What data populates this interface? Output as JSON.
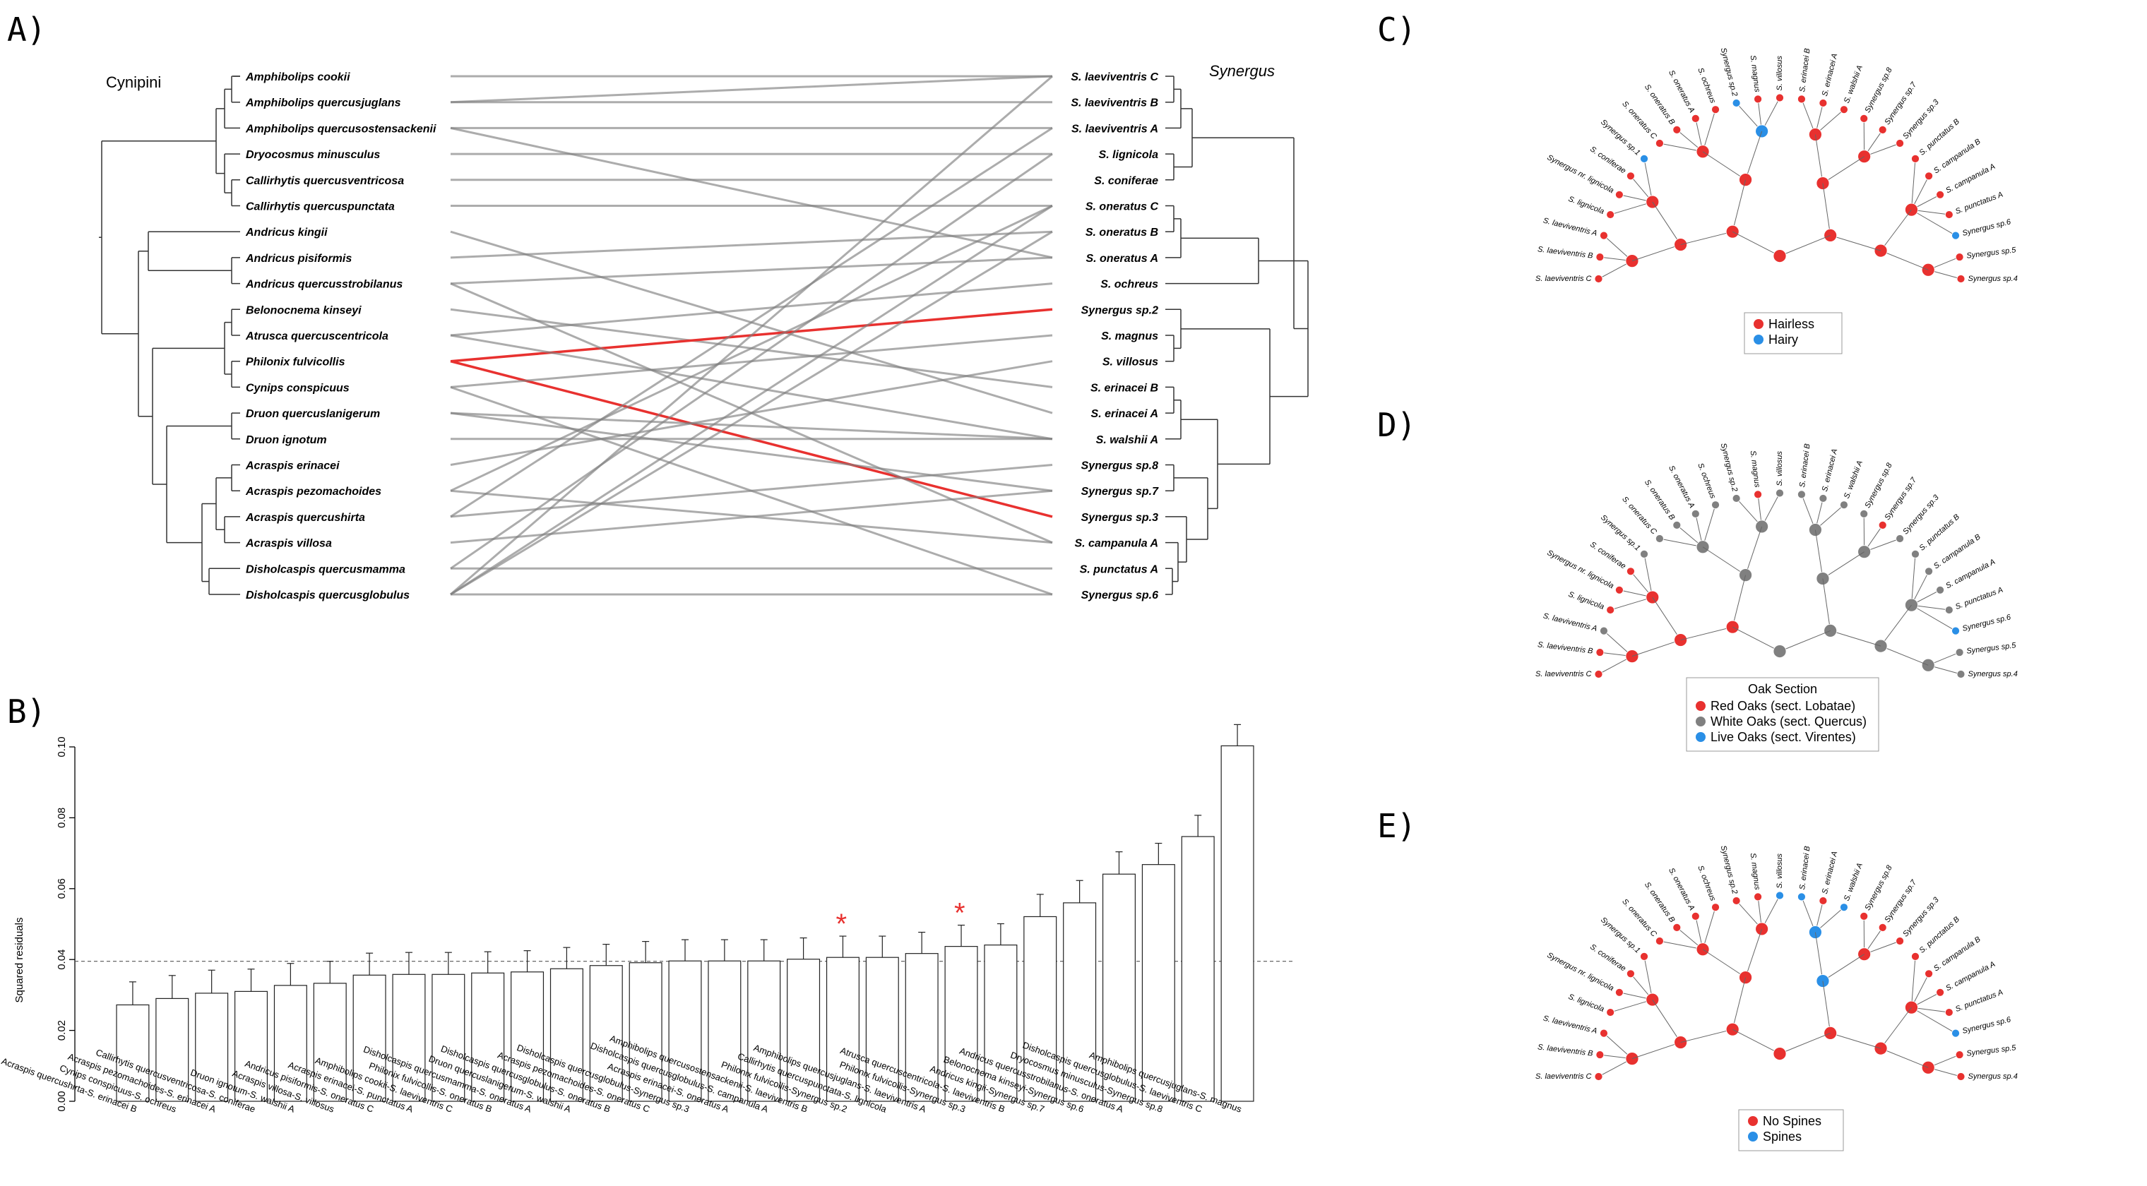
{
  "panels": {
    "a": "A)",
    "b": "B)",
    "c": "C)",
    "d": "D)",
    "e": "E)"
  },
  "panel_a": {
    "left_clade": "Cynipini",
    "right_clade": "Synergus",
    "hosts": [
      "Amphibolips cookii",
      "Amphibolips quercusjuglans",
      "Amphibolips quercusostensackenii",
      "Dryocosmus minusculus",
      "Callirhytis quercusventricosa",
      "Callirhytis quercuspunctata",
      "Andricus kingii",
      "Andricus pisiformis",
      "Andricus quercusstrobilanus",
      "Belonocnema kinseyi",
      "Atrusca quercuscentricola",
      "Philonix fulvicollis",
      "Cynips conspicuus",
      "Druon quercuslanigerum",
      "Druon ignotum",
      "Acraspis erinacei",
      "Acraspis pezomachoides",
      "Acraspis quercushirta",
      "Acraspis villosa",
      "Disholcaspis quercusmamma",
      "Disholcaspis quercusglobulus"
    ],
    "parasites": [
      "S. laeviventris C",
      "S. laeviventris B",
      "S. laeviventris A",
      "S. lignicola",
      "S. coniferae",
      "S. oneratus C",
      "S. oneratus B",
      "S. oneratus A",
      "S. ochreus",
      "Synergus sp.2",
      "S. magnus",
      "S. villosus",
      "S. erinacei B",
      "S. erinacei A",
      "S. walshii A",
      "Synergus sp.8",
      "Synergus sp.7",
      "Synergus sp.3",
      "S. campanula A",
      "S. punctatus A",
      "Synergus sp.6"
    ],
    "links": [
      [
        0,
        0
      ],
      [
        1,
        0
      ],
      [
        1,
        1
      ],
      [
        2,
        2
      ],
      [
        3,
        3
      ],
      [
        4,
        4
      ],
      [
        5,
        5
      ],
      [
        6,
        13
      ],
      [
        7,
        6
      ],
      [
        8,
        7
      ],
      [
        9,
        12
      ],
      [
        10,
        8
      ],
      [
        11,
        9
      ],
      [
        11,
        17
      ],
      [
        12,
        10
      ],
      [
        13,
        14
      ],
      [
        14,
        14
      ],
      [
        15,
        11
      ],
      [
        16,
        5
      ],
      [
        17,
        15
      ],
      [
        18,
        16
      ],
      [
        19,
        19
      ],
      [
        20,
        0
      ],
      [
        20,
        5
      ],
      [
        20,
        6
      ],
      [
        20,
        20
      ],
      [
        10,
        14
      ],
      [
        16,
        18
      ],
      [
        17,
        2
      ],
      [
        13,
        16
      ],
      [
        19,
        3
      ],
      [
        8,
        18
      ],
      [
        2,
        7
      ],
      [
        12,
        20
      ]
    ],
    "highlight_host": 11,
    "highlight_color": "#e8312f",
    "link_color": "#7f7f7f"
  },
  "chart_data": {
    "type": "bar",
    "ylabel": "Squared residuals",
    "ylim": [
      0,
      0.1
    ],
    "yticks": [
      "0.00",
      "0.02",
      "0.04",
      "0.06",
      "0.08",
      "0.10"
    ],
    "threshold": 0.0395,
    "categories": [
      "Acraspis quercushirta-S. erinacei B",
      "Cynips conspicuus-S. ochreus",
      "Acraspis pezomachoides-S. erinacei A",
      "Callirhytis quercusventricosa-S. coniferae",
      "Druon ignotum-S. walshii A",
      "Acraspis villosa-S. villosus",
      "Andricus pisiformis-S. oneratus C",
      "Acraspis erinacei-S. punctatus A",
      "Amphibolips cookii-S. laeviventris C",
      "Philonix fulvicollis-S. oneratus B",
      "Disholcaspis quercusmamma-S. oneratus A",
      "Druon quercuslanigerum-S. walshii A",
      "Disholcaspis quercusglobulus-S. oneratus B",
      "Acraspis pezomachoides-S. oneratus C",
      "Disholcaspis quercusglobulus-Synergus sp.3",
      "Acraspis erinacei-S. oneratus A",
      "Disholcaspis quercusglobulus-S. campanula A",
      "Amphibolips quercusostensackenii-S. laeviventris B",
      "Philonix fulvicollis-Synergus sp.2",
      "Callirhytis quercuspunctata-S. lignicola",
      "Amphibolips quercusjuglans-S. laeviventris A",
      "Philonix fulvicollis-Synergus sp.3",
      "Atrusca quercuscentricola-S. laeviventris B",
      "Andricus kingii-Synergus sp.7",
      "Belonocnema kinseyi-Synergus sp.6",
      "Andricus quercusstrobilanus-S. oneratus A",
      "Dryocosmus minusculus-Synergus sp.8",
      "Disholcaspis quercusglobulus-S. laeviventris C",
      "Amphibolips quercusjuglans-S. magnus"
    ],
    "values": [
      0.0272,
      0.029,
      0.0305,
      0.031,
      0.0327,
      0.0333,
      0.0356,
      0.0358,
      0.0358,
      0.0362,
      0.0365,
      0.0374,
      0.0383,
      0.0391,
      0.0396,
      0.0396,
      0.0396,
      0.0401,
      0.0406,
      0.0406,
      0.0417,
      0.0437,
      0.0441,
      0.0521,
      0.056,
      0.0641,
      0.0668,
      0.0747,
      0.1003
    ],
    "errors": [
      0.0065,
      0.0065,
      0.0065,
      0.0063,
      0.0062,
      0.0062,
      0.0062,
      0.0062,
      0.0062,
      0.006,
      0.006,
      0.006,
      0.006,
      0.006,
      0.006,
      0.006,
      0.006,
      0.006,
      0.006,
      0.006,
      0.006,
      0.006,
      0.006,
      0.0063,
      0.0063,
      0.0063,
      0.006,
      0.006,
      0.006
    ],
    "starred": [
      18,
      21
    ],
    "star_symbol": "*",
    "star_color": "#e8312f"
  },
  "trees": {
    "tips": [
      "S. laeviventris C",
      "S. laeviventris B",
      "S. laeviventris A",
      "S. lignicola",
      "Synergus nr. lignicola",
      "S. coniferae",
      "Synergus sp.1",
      "S. oneratus C",
      "S. oneratus B",
      "S. oneratus A",
      "S. ochreus",
      "Synergus sp.2",
      "S. magnus",
      "S. villosus",
      "S. erinacei B",
      "S. erinacei A",
      "S. walshii A",
      "Synergus sp.8",
      "Synergus sp.7",
      "Synergus sp.3",
      "S. punctatus B",
      "S. campanula B",
      "S. campanula A",
      "S. punctatus A",
      "Synergus sp.6",
      "Synergus sp.5",
      "Synergus sp.4"
    ],
    "c": {
      "legend_title": "",
      "legend": [
        {
          "label": "Hairless",
          "color": "#e8312f"
        },
        {
          "label": "Hairy",
          "color": "#2a8fe6"
        }
      ],
      "tip_states": [
        0,
        0,
        0,
        0,
        0,
        0,
        1,
        0,
        0,
        0,
        0,
        1,
        0,
        0,
        0,
        0,
        0,
        0,
        0,
        0,
        0,
        0,
        0,
        0,
        1,
        0,
        0
      ]
    },
    "d": {
      "legend_title": "Oak Section",
      "legend": [
        {
          "label": "Red Oaks (sect. Lobatae)",
          "color": "#e8312f"
        },
        {
          "label": "White Oaks (sect. Quercus)",
          "color": "#808080"
        },
        {
          "label": "Live Oaks (sect. Virentes)",
          "color": "#2a8fe6"
        }
      ],
      "tip_states": [
        0,
        0,
        1,
        0,
        0,
        0,
        1,
        1,
        1,
        1,
        1,
        1,
        0,
        1,
        1,
        1,
        1,
        1,
        0,
        1,
        1,
        1,
        1,
        1,
        2,
        1,
        1
      ]
    },
    "e": {
      "legend_title": "",
      "legend": [
        {
          "label": "No Spines",
          "color": "#e8312f"
        },
        {
          "label": "Spines",
          "color": "#2a8fe6"
        }
      ],
      "tip_states": [
        0,
        0,
        0,
        0,
        0,
        0,
        0,
        0,
        0,
        0,
        0,
        0,
        0,
        1,
        1,
        0,
        1,
        0,
        0,
        0,
        0,
        0,
        0,
        0,
        1,
        0,
        0
      ]
    }
  }
}
